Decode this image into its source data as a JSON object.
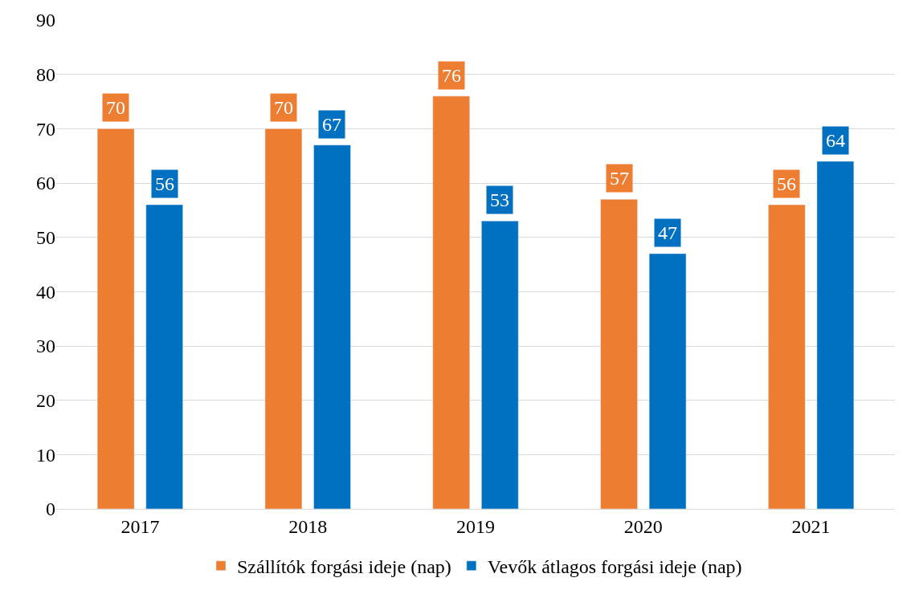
{
  "chart_data": {
    "type": "bar",
    "categories": [
      "2017",
      "2018",
      "2019",
      "2020",
      "2021"
    ],
    "series": [
      {
        "name": "Szállítók forgási ideje (nap)",
        "color": "#ed7d31",
        "values": [
          70,
          70,
          76,
          57,
          56
        ]
      },
      {
        "name": "Vevők átlagos forgási ideje (nap)",
        "color": "#0070c0",
        "values": [
          56,
          67,
          53,
          47,
          64
        ]
      }
    ],
    "ylim": [
      0,
      90
    ],
    "yticks": [
      0,
      10,
      20,
      30,
      40,
      50,
      60,
      70,
      80,
      90
    ],
    "grid": "y",
    "legend": "bottom",
    "data_labels": true
  }
}
